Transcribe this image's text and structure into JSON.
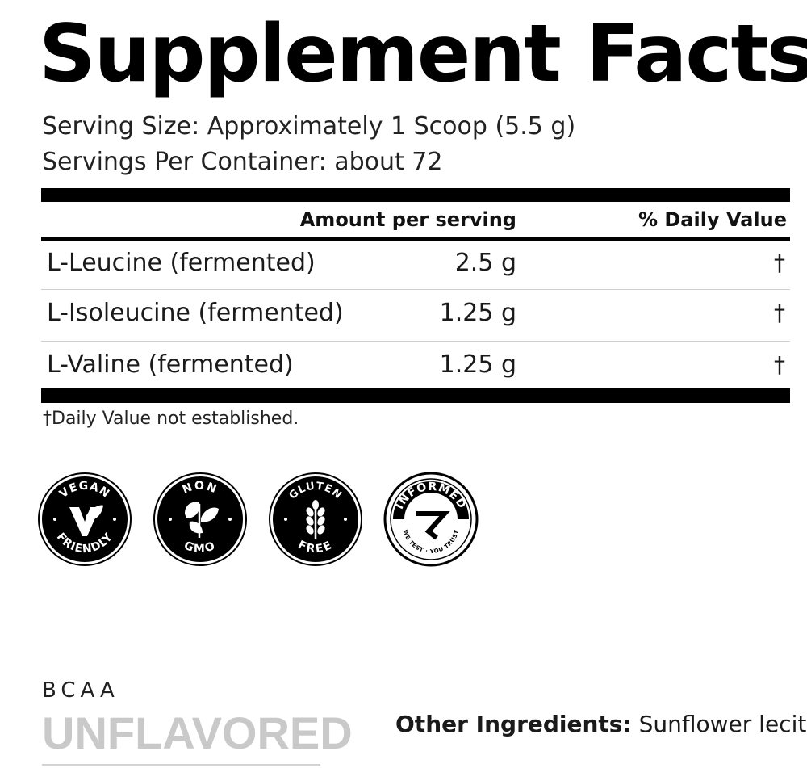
{
  "panel": {
    "title": "Supplement Facts",
    "serving_size": "Serving Size: Approximately 1 Scoop (5.5 g)",
    "servings_per_container": "Servings Per Container: about 72"
  },
  "table": {
    "amount_header": "Amount per serving",
    "dv_header": "% Daily Value",
    "rows": [
      {
        "name": "L-Leucine (fermented)",
        "amount": "2.5 g",
        "dv": "†"
      },
      {
        "name": "L-Isoleucine (fermented)",
        "amount": "1.25 g",
        "dv": "†"
      },
      {
        "name": "L-Valine (fermented)",
        "amount": "1.25 g",
        "dv": "†"
      }
    ],
    "footnote": "†Daily Value not established."
  },
  "badges": [
    {
      "icon": "vegan-friendly-badge-icon",
      "top": "VEGAN",
      "bottom": "FRIENDLY"
    },
    {
      "icon": "non-gmo-badge-icon",
      "top": "NON",
      "bottom": "GMO"
    },
    {
      "icon": "gluten-free-badge-icon",
      "top": "GLUTEN",
      "bottom": "FREE"
    },
    {
      "icon": "informed-badge-icon",
      "top": "INFORMED",
      "bottom": "WE TEST · YOU TRUST"
    }
  ],
  "product": {
    "line": "BCAA",
    "flavor": "UNFLAVORED"
  },
  "other_ingredients": {
    "label": "Other Ingredients:",
    "value": "Sunflower lecithin"
  },
  "colors": {
    "text": "#1a1a1a",
    "bars": "#000000",
    "flavor_gray": "#c9c9c9"
  }
}
